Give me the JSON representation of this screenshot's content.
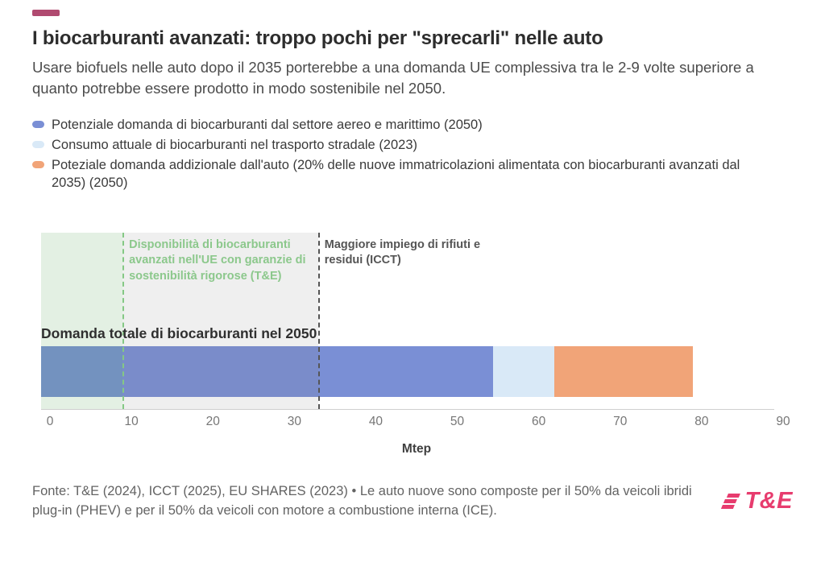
{
  "brand": {
    "logo_text": "T&E",
    "accent_color": "#e73c6e",
    "dash_color": "#b04a70"
  },
  "header": {
    "title": "I biocarburanti avanzati: troppo pochi per \"sprecarli\" nelle auto",
    "subtitle": "Usare biofuels nelle auto dopo il 2035 porterebbe a una domanda UE complessiva tra le 2-9 volte superiore a quanto potrebbe essere prodotto in modo sostenibile nel 2050."
  },
  "legend": {
    "items": [
      {
        "label": "Potenziale domanda di biocarburanti dal settore aereo e marittimo (2050)",
        "color": "#7a8fd5"
      },
      {
        "label": "Consumo attuale di biocarburanti nel trasporto stradale (2023)",
        "color": "#d9e9f7"
      },
      {
        "label": "Poteziale domanda addizionale dall'auto (20% delle nuove immatricolazioni alimentata con biocarburanti avanzati dal 2035) (2050)",
        "color": "#f1a478"
      }
    ]
  },
  "chart_data": {
    "type": "bar",
    "orientation": "horizontal",
    "bar_label": "Domanda totale di biocarburanti nel 2050",
    "xlabel": "Mtep",
    "xlim": [
      0,
      90
    ],
    "xticks": [
      0,
      10,
      20,
      30,
      40,
      50,
      60,
      70,
      80,
      90
    ],
    "series": [
      {
        "name": "Potenziale domanda di biocarburanti dal settore aereo e marittimo (2050)",
        "value": 55.5,
        "color": "#7a8fd5"
      },
      {
        "name": "Consumo attuale di biocarburanti nel trasporto stradale (2023)",
        "value": 7.5,
        "color": "#d9e9f7"
      },
      {
        "name": "Poteziale domanda addizionale dall'auto (20% delle nuove immatricolazioni alimentata con biocarburanti avanzati dal 2035) (2050)",
        "value": 17,
        "color": "#f1a478"
      }
    ],
    "total": 80,
    "reference_bands": [
      {
        "from": 0,
        "to": 10,
        "fill": "rgba(82,160,82,0.16)",
        "line_color": "#85c885",
        "label": "Disponibilità di biocarburanti avanzati nell'UE con garanzie di sostenibilità rigorose (T&E)",
        "label_color": "#8cc88c"
      },
      {
        "from": 10,
        "to": 34,
        "fill": "rgba(120,120,120,0.12)",
        "line_color": "#555555",
        "label": "Maggiore impiego di rifiuti e residui (ICCT)",
        "label_color": "#555555"
      }
    ]
  },
  "footer": {
    "source_text": "Fonte: T&E (2024), ICCT (2025), EU SHARES (2023) • Le auto nuove sono composte per il 50% da veicoli ibridi plug-in (PHEV) e per il 50% da veicoli con motore a combustione interna (ICE)."
  }
}
